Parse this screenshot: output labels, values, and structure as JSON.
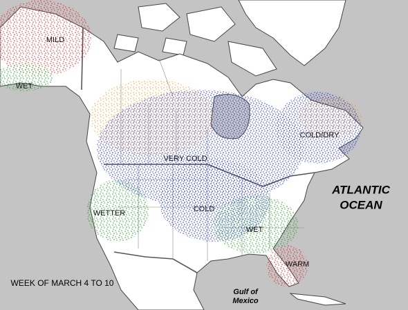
{
  "map": {
    "title": "WEEK OF MARCH 4 TO 10",
    "regions": [
      {
        "label": "MILD"
      },
      {
        "label": "WET"
      },
      {
        "label": "VERY COLD"
      },
      {
        "label": "COLD/DRY"
      },
      {
        "label": "WETTER"
      },
      {
        "label": "COLD"
      },
      {
        "label": "WET"
      },
      {
        "label": "WARM"
      }
    ],
    "ocean_label": [
      "ATLANTIC",
      "OCEAN"
    ],
    "gulf_label": [
      "Gulf of",
      "Mexico"
    ]
  }
}
